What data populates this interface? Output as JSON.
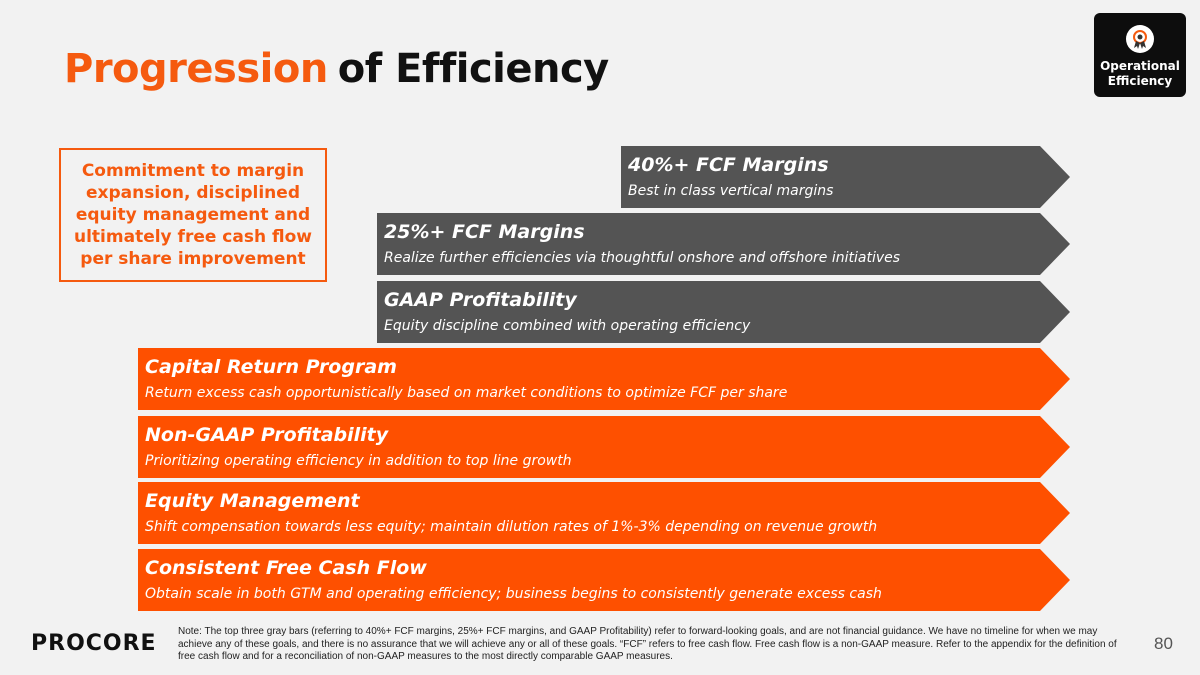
{
  "slide": {
    "title_accent": "Progression",
    "title_rest": "of Efficiency",
    "badge": {
      "label_line1": "Operational",
      "label_line2": "Efficiency",
      "icon": "award-ribbon-icon"
    },
    "commitment_text": "Commitment to margin expansion, disciplined equity management and ultimately free cash flow per share improvement",
    "bars": [
      {
        "title": "40%+ FCF Margins",
        "subtitle": "Best in class vertical margins",
        "color": "gray"
      },
      {
        "title": "25%+ FCF Margins",
        "subtitle": "Realize further efficiencies via thoughtful onshore and offshore initiatives",
        "color": "gray"
      },
      {
        "title": "GAAP Profitability",
        "subtitle": "Equity discipline combined with operating efficiency",
        "color": "gray"
      },
      {
        "title": "Capital Return Program",
        "subtitle": "Return excess cash opportunistically based on market conditions to optimize FCF per share",
        "color": "orange"
      },
      {
        "title": "Non-GAAP Profitability",
        "subtitle": "Prioritizing operating efficiency in addition to top line growth",
        "color": "orange"
      },
      {
        "title": "Equity Management",
        "subtitle": "Shift compensation towards less equity; maintain dilution rates of 1%-3% depending on revenue growth",
        "color": "orange"
      },
      {
        "title": "Consistent Free Cash Flow",
        "subtitle": "Obtain scale in both GTM and operating efficiency; business begins to consistently generate excess cash",
        "color": "orange"
      }
    ],
    "footnote": "Note: The top three gray bars (referring to 40%+ FCF margins, 25%+ FCF margins, and GAAP Profitability) refer to forward-looking goals, and are not financial guidance. We have no timeline for when we may achieve any of these goals, and there is no assurance that we will achieve any or all of these goals. “FCF” refers to free cash flow. Free cash flow is a non-GAAP measure.  Refer to the appendix for the definition of free cash flow and for a reconciliation of non-GAAP measures to the most directly comparable GAAP measures.",
    "logo_text": "PROCORE",
    "page_number": "80"
  },
  "colors": {
    "accent": "#f55a0f",
    "bar_gray": "#545454",
    "bar_orange": "#fe5000"
  }
}
